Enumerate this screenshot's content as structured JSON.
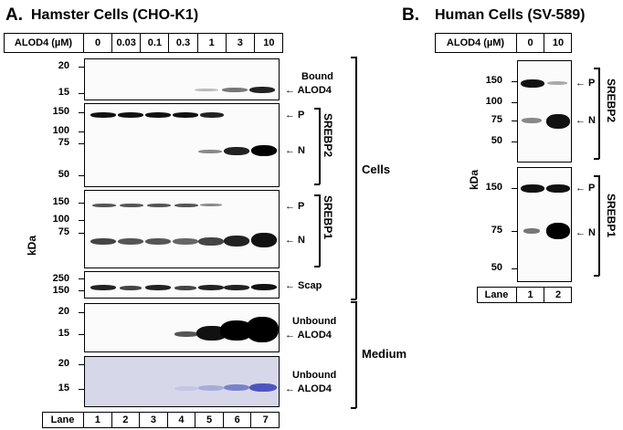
{
  "panelA": {
    "letter": "A.",
    "title": "Hamster Cells (CHO-K1)",
    "alod4_header": "ALOD4 (µM)",
    "concentrations": [
      "0",
      "0.03",
      "0.1",
      "0.3",
      "1",
      "3",
      "10"
    ],
    "lane_header": "Lane",
    "lanes": [
      "1",
      "2",
      "3",
      "4",
      "5",
      "6",
      "7"
    ],
    "kda_label": "kDa",
    "blot1": {
      "ticks": [
        "20",
        "15"
      ],
      "label_top": "Bound",
      "label_bottom": "← ALOD4"
    },
    "blot2": {
      "ticks": [
        "150",
        "100",
        "75",
        "50"
      ],
      "p_label": "← P",
      "n_label": "← N",
      "bracket_label": "SREBP2"
    },
    "blot3": {
      "ticks": [
        "150",
        "100",
        "75"
      ],
      "p_label": "← P",
      "n_label": "← N",
      "bracket_label": "SREBP1"
    },
    "blot4": {
      "ticks": [
        "250",
        "150"
      ],
      "label": "← Scap"
    },
    "blot5": {
      "ticks": [
        "20",
        "15"
      ],
      "label_top": "Unbound",
      "label_bottom": "← ALOD4"
    },
    "blot6": {
      "ticks": [
        "20",
        "15"
      ],
      "label_top": "Unbound",
      "label_bottom": "← ALOD4"
    },
    "cells_label": "Cells",
    "medium_label": "Medium"
  },
  "panelB": {
    "letter": "B.",
    "title": "Human Cells (SV-589)",
    "alod4_header": "ALOD4 (µM)",
    "concentrations": [
      "0",
      "10"
    ],
    "lane_header": "Lane",
    "lanes": [
      "1",
      "2"
    ],
    "kda_label": "kDa",
    "blot1": {
      "ticks": [
        "150",
        "100",
        "75",
        "50"
      ],
      "p_label": "← P",
      "n_label": "← N",
      "bracket_label": "SREBP2"
    },
    "blot2": {
      "ticks": [
        "150",
        "75",
        "50"
      ],
      "p_label": "← P",
      "n_label": "← N",
      "bracket_label": "SREBP1"
    }
  }
}
